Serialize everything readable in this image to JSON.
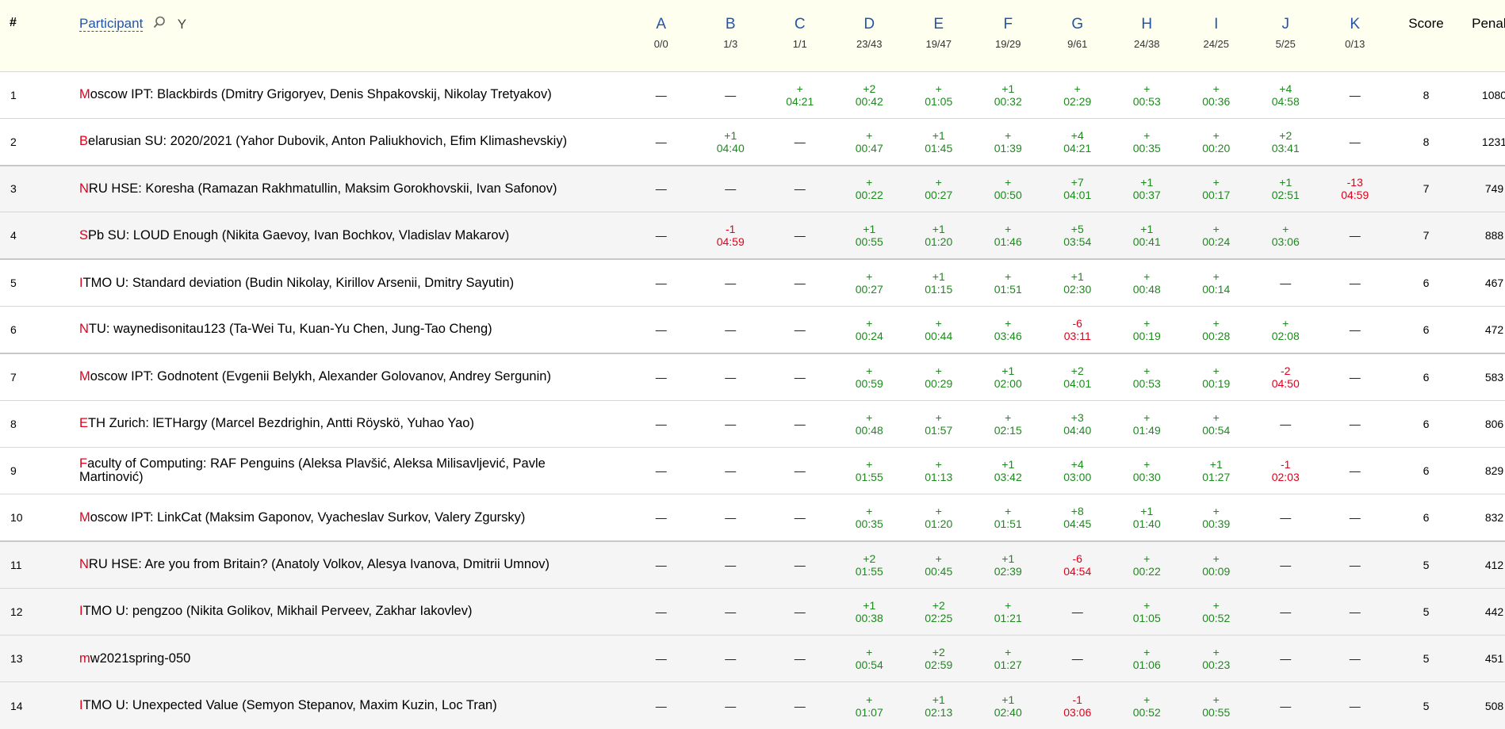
{
  "header": {
    "rank_label": "#",
    "participant_label": "Participant",
    "filter_label": "Y",
    "score_label": "Score",
    "penalty_label": "Penalty",
    "search_icon": "search-icon",
    "filter_icon": "filter-icon"
  },
  "problems": [
    {
      "letter": "A",
      "stat": "0/0"
    },
    {
      "letter": "B",
      "stat": "1/3"
    },
    {
      "letter": "C",
      "stat": "1/1"
    },
    {
      "letter": "D",
      "stat": "23/43"
    },
    {
      "letter": "E",
      "stat": "19/47"
    },
    {
      "letter": "F",
      "stat": "19/29"
    },
    {
      "letter": "G",
      "stat": "9/61"
    },
    {
      "letter": "H",
      "stat": "24/38"
    },
    {
      "letter": "I",
      "stat": "24/25"
    },
    {
      "letter": "J",
      "stat": "5/25"
    },
    {
      "letter": "K",
      "stat": "0/13"
    }
  ],
  "colors": {
    "accepted": "#1d8a1d",
    "rejected": "#e0001a",
    "link": "#2255aa",
    "header_bg": "#fffff0"
  },
  "rows": [
    {
      "rank": "1",
      "first": "M",
      "rest": "oscow IPT: Blackbirds (Dmitry Grigoryev, Denis Shpakovskij, Nikolay Tretyakov)",
      "score": "8",
      "penalty": "1080",
      "group": 1,
      "break": false,
      "cells": [
        {
          "s": "n",
          "a": "—"
        },
        {
          "s": "n",
          "a": "—"
        },
        {
          "s": "a",
          "a": "+",
          "t": "04:21"
        },
        {
          "s": "a",
          "a": "+2",
          "t": "00:42"
        },
        {
          "s": "a",
          "a": "+",
          "t": "01:05"
        },
        {
          "s": "a",
          "a": "+1",
          "t": "00:32"
        },
        {
          "s": "a",
          "a": "+",
          "t": "02:29"
        },
        {
          "s": "a",
          "a": "+",
          "t": "00:53"
        },
        {
          "s": "a",
          "a": "+",
          "t": "00:36"
        },
        {
          "s": "a",
          "a": "+4",
          "t": "04:58"
        },
        {
          "s": "n",
          "a": "—"
        }
      ]
    },
    {
      "rank": "2",
      "first": "B",
      "rest": "elarusian SU: 2020/2021 (Yahor Dubovik, Anton Paliukhovich, Efim Klimashevskiy)",
      "score": "8",
      "penalty": "1231",
      "group": 1,
      "break": false,
      "cells": [
        {
          "s": "n",
          "a": "—"
        },
        {
          "s": "a",
          "a": "+1",
          "t": "04:40"
        },
        {
          "s": "n",
          "a": "—"
        },
        {
          "s": "a",
          "a": "+",
          "t": "00:47"
        },
        {
          "s": "a",
          "a": "+1",
          "t": "01:45"
        },
        {
          "s": "a",
          "a": "+",
          "t": "01:39"
        },
        {
          "s": "a",
          "a": "+4",
          "t": "04:21"
        },
        {
          "s": "a",
          "a": "+",
          "t": "00:35"
        },
        {
          "s": "a",
          "a": "+",
          "t": "00:20"
        },
        {
          "s": "a",
          "a": "+2",
          "t": "03:41"
        },
        {
          "s": "n",
          "a": "—"
        }
      ]
    },
    {
      "rank": "3",
      "first": "N",
      "rest": "RU HSE: Koresha (Ramazan Rakhmatullin, Maksim Gorokhovskii, Ivan Safonov)",
      "score": "7",
      "penalty": "749",
      "group": 2,
      "break": true,
      "cells": [
        {
          "s": "n",
          "a": "—"
        },
        {
          "s": "n",
          "a": "—"
        },
        {
          "s": "n",
          "a": "—"
        },
        {
          "s": "a",
          "a": "+",
          "t": "00:22"
        },
        {
          "s": "a",
          "a": "+",
          "t": "00:27"
        },
        {
          "s": "a",
          "a": "+",
          "t": "00:50"
        },
        {
          "s": "a",
          "a": "+7",
          "t": "04:01"
        },
        {
          "s": "a",
          "a": "+1",
          "t": "00:37"
        },
        {
          "s": "a",
          "a": "+",
          "t": "00:17"
        },
        {
          "s": "a",
          "a": "+1",
          "t": "02:51"
        },
        {
          "s": "r",
          "a": "-13",
          "t": "04:59"
        }
      ]
    },
    {
      "rank": "4",
      "first": "S",
      "rest": "Pb SU: LOUD Enough (Nikita Gaevoy, Ivan Bochkov, Vladislav Makarov)",
      "score": "7",
      "penalty": "888",
      "group": 2,
      "break": false,
      "cells": [
        {
          "s": "n",
          "a": "—"
        },
        {
          "s": "r",
          "a": "-1",
          "t": "04:59"
        },
        {
          "s": "n",
          "a": "—"
        },
        {
          "s": "a",
          "a": "+1",
          "t": "00:55"
        },
        {
          "s": "a",
          "a": "+1",
          "t": "01:20"
        },
        {
          "s": "a",
          "a": "+",
          "t": "01:46"
        },
        {
          "s": "a",
          "a": "+5",
          "t": "03:54"
        },
        {
          "s": "a",
          "a": "+1",
          "t": "00:41"
        },
        {
          "s": "a",
          "a": "+",
          "t": "00:24"
        },
        {
          "s": "a",
          "a": "+",
          "t": "03:06"
        },
        {
          "s": "n",
          "a": "—"
        }
      ]
    },
    {
      "rank": "5",
      "first": "I",
      "rest": "TMO U: Standard deviation (Budin Nikolay, Kirillov Arsenii, Dmitry Sayutin)",
      "score": "6",
      "penalty": "467",
      "group": 1,
      "break": true,
      "cells": [
        {
          "s": "n",
          "a": "—"
        },
        {
          "s": "n",
          "a": "—"
        },
        {
          "s": "n",
          "a": "—"
        },
        {
          "s": "a",
          "a": "+",
          "t": "00:27"
        },
        {
          "s": "a",
          "a": "+1",
          "t": "01:15"
        },
        {
          "s": "a",
          "a": "+",
          "t": "01:51"
        },
        {
          "s": "a",
          "a": "+1",
          "t": "02:30"
        },
        {
          "s": "a",
          "a": "+",
          "t": "00:48"
        },
        {
          "s": "a",
          "a": "+",
          "t": "00:14"
        },
        {
          "s": "n",
          "a": "—"
        },
        {
          "s": "n",
          "a": "—"
        }
      ]
    },
    {
      "rank": "6",
      "first": "N",
      "rest": "TU: waynedisonitau123 (Ta-Wei Tu, Kuan-Yu Chen, Jung-Tao Cheng)",
      "score": "6",
      "penalty": "472",
      "group": 1,
      "break": false,
      "cells": [
        {
          "s": "n",
          "a": "—"
        },
        {
          "s": "n",
          "a": "—"
        },
        {
          "s": "n",
          "a": "—"
        },
        {
          "s": "a",
          "a": "+",
          "t": "00:24"
        },
        {
          "s": "a",
          "a": "+",
          "t": "00:44"
        },
        {
          "s": "a",
          "a": "+",
          "t": "03:46"
        },
        {
          "s": "r",
          "a": "-6",
          "t": "03:11"
        },
        {
          "s": "a",
          "a": "+",
          "t": "00:19"
        },
        {
          "s": "a",
          "a": "+",
          "t": "00:28"
        },
        {
          "s": "a",
          "a": "+",
          "t": "02:08"
        },
        {
          "s": "n",
          "a": "—"
        }
      ]
    },
    {
      "rank": "7",
      "first": "M",
      "rest": "oscow IPT: Godnotent (Evgenii Belykh, Alexander Golovanov, Andrey Sergunin)",
      "score": "6",
      "penalty": "583",
      "group": 1,
      "break": true,
      "cells": [
        {
          "s": "n",
          "a": "—"
        },
        {
          "s": "n",
          "a": "—"
        },
        {
          "s": "n",
          "a": "—"
        },
        {
          "s": "a",
          "a": "+",
          "t": "00:59"
        },
        {
          "s": "a",
          "a": "+",
          "t": "00:29"
        },
        {
          "s": "a",
          "a": "+1",
          "t": "02:00"
        },
        {
          "s": "a",
          "a": "+2",
          "t": "04:01"
        },
        {
          "s": "a",
          "a": "+",
          "t": "00:53"
        },
        {
          "s": "a",
          "a": "+",
          "t": "00:19"
        },
        {
          "s": "r",
          "a": "-2",
          "t": "04:50"
        },
        {
          "s": "n",
          "a": "—"
        }
      ]
    },
    {
      "rank": "8",
      "first": "E",
      "rest": "TH Zurich: lETHargy (Marcel Bezdrighin, Antti Röyskö, Yuhao Yao)",
      "score": "6",
      "penalty": "806",
      "group": 1,
      "break": false,
      "cells": [
        {
          "s": "n",
          "a": "—"
        },
        {
          "s": "n",
          "a": "—"
        },
        {
          "s": "n",
          "a": "—"
        },
        {
          "s": "a",
          "a": "+",
          "t": "00:48"
        },
        {
          "s": "a",
          "a": "+",
          "t": "01:57"
        },
        {
          "s": "a",
          "a": "+",
          "t": "02:15"
        },
        {
          "s": "a",
          "a": "+3",
          "t": "04:40"
        },
        {
          "s": "a",
          "a": "+",
          "t": "01:49"
        },
        {
          "s": "a",
          "a": "+",
          "t": "00:54"
        },
        {
          "s": "n",
          "a": "—"
        },
        {
          "s": "n",
          "a": "—"
        }
      ]
    },
    {
      "rank": "9",
      "first": "F",
      "rest": "aculty of Computing: RAF Penguins (Aleksa Plavšić, Aleksa Milisavljević, Pavle Martinović)",
      "score": "6",
      "penalty": "829",
      "group": 1,
      "break": false,
      "cells": [
        {
          "s": "n",
          "a": "—"
        },
        {
          "s": "n",
          "a": "—"
        },
        {
          "s": "n",
          "a": "—"
        },
        {
          "s": "a",
          "a": "+",
          "t": "01:55"
        },
        {
          "s": "a",
          "a": "+",
          "t": "01:13"
        },
        {
          "s": "a",
          "a": "+1",
          "t": "03:42"
        },
        {
          "s": "a",
          "a": "+4",
          "t": "03:00"
        },
        {
          "s": "a",
          "a": "+",
          "t": "00:30"
        },
        {
          "s": "a",
          "a": "+1",
          "t": "01:27"
        },
        {
          "s": "r",
          "a": "-1",
          "t": "02:03"
        },
        {
          "s": "n",
          "a": "—"
        }
      ]
    },
    {
      "rank": "10",
      "first": "M",
      "rest": "oscow IPT: LinkCat (Maksim Gaponov, Vyacheslav Surkov, Valery Zgursky)",
      "score": "6",
      "penalty": "832",
      "group": 1,
      "break": false,
      "cells": [
        {
          "s": "n",
          "a": "—"
        },
        {
          "s": "n",
          "a": "—"
        },
        {
          "s": "n",
          "a": "—"
        },
        {
          "s": "a",
          "a": "+",
          "t": "00:35"
        },
        {
          "s": "a",
          "a": "+",
          "t": "01:20"
        },
        {
          "s": "a",
          "a": "+",
          "t": "01:51"
        },
        {
          "s": "a",
          "a": "+8",
          "t": "04:45"
        },
        {
          "s": "a",
          "a": "+1",
          "t": "01:40"
        },
        {
          "s": "a",
          "a": "+",
          "t": "00:39"
        },
        {
          "s": "n",
          "a": "—"
        },
        {
          "s": "n",
          "a": "—"
        }
      ]
    },
    {
      "rank": "11",
      "first": "N",
      "rest": "RU HSE: Are you from Britain? (Anatoly Volkov, Alesya Ivanova, Dmitrii Umnov)",
      "score": "5",
      "penalty": "412",
      "group": 2,
      "break": true,
      "cells": [
        {
          "s": "n",
          "a": "—"
        },
        {
          "s": "n",
          "a": "—"
        },
        {
          "s": "n",
          "a": "—"
        },
        {
          "s": "a",
          "a": "+2",
          "t": "01:55"
        },
        {
          "s": "a",
          "a": "+",
          "t": "00:45"
        },
        {
          "s": "a",
          "a": "+1",
          "t": "02:39"
        },
        {
          "s": "r",
          "a": "-6",
          "t": "04:54"
        },
        {
          "s": "a",
          "a": "+",
          "t": "00:22"
        },
        {
          "s": "a",
          "a": "+",
          "t": "00:09"
        },
        {
          "s": "n",
          "a": "—"
        },
        {
          "s": "n",
          "a": "—"
        }
      ]
    },
    {
      "rank": "12",
      "first": "I",
      "rest": "TMO U: pengzoo (Nikita Golikov, Mikhail Perveev, Zakhar Iakovlev)",
      "score": "5",
      "penalty": "442",
      "group": 2,
      "break": false,
      "cells": [
        {
          "s": "n",
          "a": "—"
        },
        {
          "s": "n",
          "a": "—"
        },
        {
          "s": "n",
          "a": "—"
        },
        {
          "s": "a",
          "a": "+1",
          "t": "00:38"
        },
        {
          "s": "a",
          "a": "+2",
          "t": "02:25"
        },
        {
          "s": "a",
          "a": "+",
          "t": "01:21"
        },
        {
          "s": "n",
          "a": "—"
        },
        {
          "s": "a",
          "a": "+",
          "t": "01:05"
        },
        {
          "s": "a",
          "a": "+",
          "t": "00:52"
        },
        {
          "s": "n",
          "a": "—"
        },
        {
          "s": "n",
          "a": "—"
        }
      ]
    },
    {
      "rank": "13",
      "first": "m",
      "rest": "w2021spring-050",
      "score": "5",
      "penalty": "451",
      "group": 2,
      "break": false,
      "cells": [
        {
          "s": "n",
          "a": "—"
        },
        {
          "s": "n",
          "a": "—"
        },
        {
          "s": "n",
          "a": "—"
        },
        {
          "s": "a",
          "a": "+",
          "t": "00:54"
        },
        {
          "s": "a",
          "a": "+2",
          "t": "02:59"
        },
        {
          "s": "a",
          "a": "+",
          "t": "01:27"
        },
        {
          "s": "n",
          "a": "—"
        },
        {
          "s": "a",
          "a": "+",
          "t": "01:06"
        },
        {
          "s": "a",
          "a": "+",
          "t": "00:23"
        },
        {
          "s": "n",
          "a": "—"
        },
        {
          "s": "n",
          "a": "—"
        }
      ]
    },
    {
      "rank": "14",
      "first": "I",
      "rest": "TMO U: Unexpected Value (Semyon Stepanov, Maxim Kuzin, Loc Tran)",
      "score": "5",
      "penalty": "508",
      "group": 2,
      "break": false,
      "cells": [
        {
          "s": "n",
          "a": "—"
        },
        {
          "s": "n",
          "a": "—"
        },
        {
          "s": "n",
          "a": "—"
        },
        {
          "s": "a",
          "a": "+",
          "t": "01:07"
        },
        {
          "s": "a",
          "a": "+1",
          "t": "02:13"
        },
        {
          "s": "a",
          "a": "+1",
          "t": "02:40"
        },
        {
          "s": "r",
          "a": "-1",
          "t": "03:06"
        },
        {
          "s": "a",
          "a": "+",
          "t": "00:52"
        },
        {
          "s": "a",
          "a": "+",
          "t": "00:55"
        },
        {
          "s": "n",
          "a": "—"
        },
        {
          "s": "n",
          "a": "—"
        }
      ]
    }
  ]
}
